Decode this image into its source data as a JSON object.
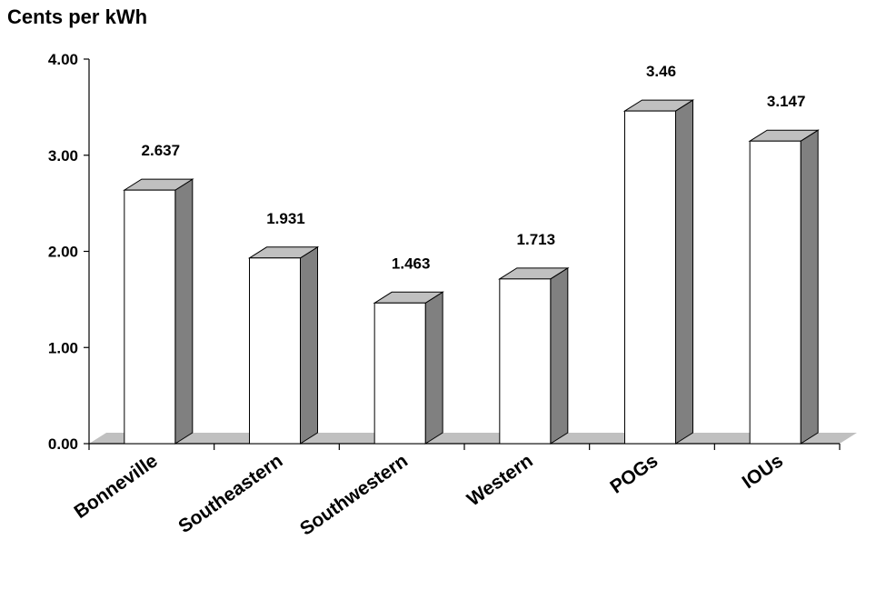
{
  "chart_data": {
    "type": "bar",
    "title": "",
    "ylabel": "Cents per kWh",
    "xlabel": "",
    "categories": [
      "Bonneville",
      "Southeastern",
      "Southwestern",
      "Western",
      "POGs",
      "IOUs"
    ],
    "values": [
      2.637,
      1.931,
      1.463,
      1.713,
      3.46,
      3.147
    ],
    "value_labels": [
      "2.637",
      "1.931",
      "1.463",
      "1.713",
      "3.46",
      "3.147"
    ],
    "ylim": [
      0,
      4
    ],
    "yticks": [
      "0.00",
      "1.00",
      "2.00",
      "3.00",
      "4.00"
    ],
    "grid": false,
    "legend": "none",
    "style": "3d-column",
    "colors": {
      "bar_front": "#ffffff",
      "bar_top": "#c0c0c0",
      "bar_side": "#808080",
      "floor": "#c0c0c0",
      "outline": "#000000"
    }
  }
}
